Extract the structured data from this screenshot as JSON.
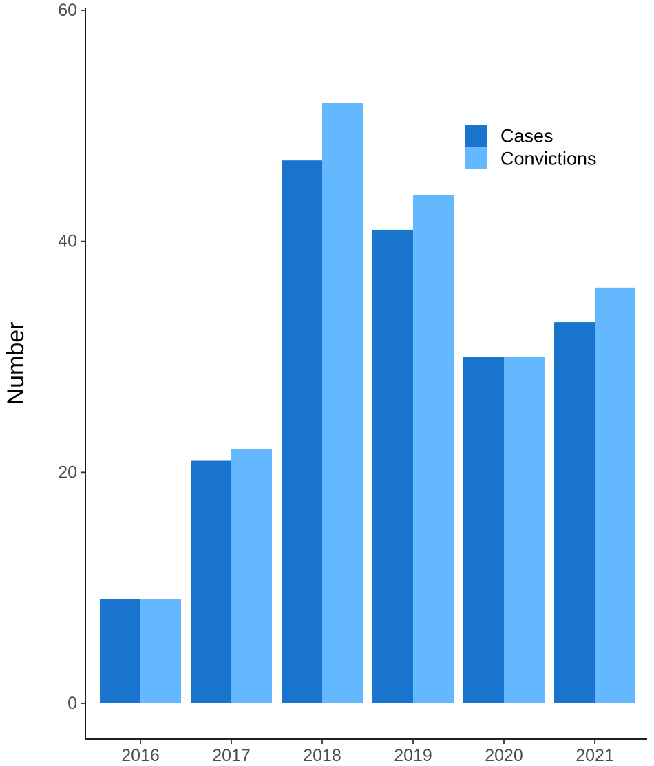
{
  "chart_data": {
    "type": "bar",
    "title": "",
    "xlabel": "",
    "ylabel": "Number",
    "categories": [
      "2016",
      "2017",
      "2018",
      "2019",
      "2020",
      "2021"
    ],
    "series": [
      {
        "name": "Cases",
        "color": "#1874CD",
        "values": [
          9,
          21,
          47,
          41,
          30,
          33
        ]
      },
      {
        "name": "Convictions",
        "color": "#63B8FF",
        "values": [
          9,
          22,
          52,
          44,
          30,
          36
        ]
      }
    ],
    "ylim": [
      0,
      60
    ],
    "yticks": [
      0,
      20,
      40,
      60
    ],
    "grid": false,
    "legend_position": "top-right"
  }
}
